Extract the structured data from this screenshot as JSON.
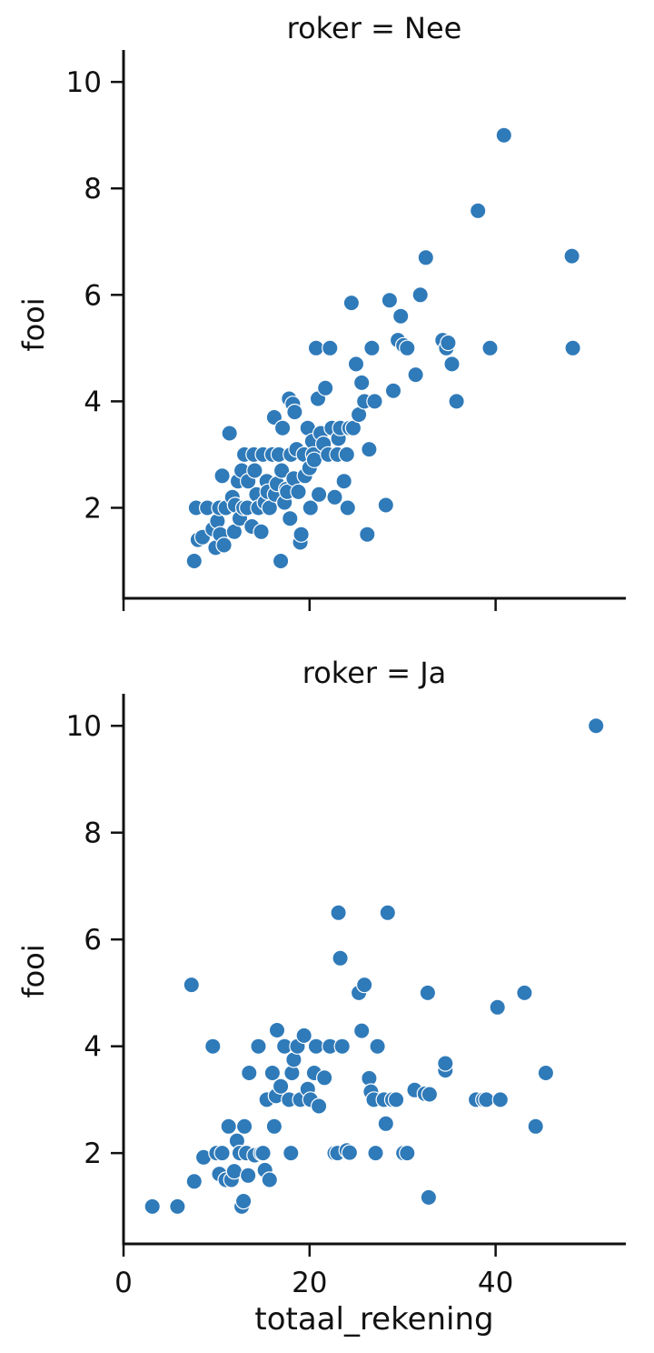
{
  "chart_data": [
    {
      "type": "scatter",
      "title": "roker = Nee",
      "xlabel": "",
      "ylabel": "fooi",
      "xlim": [
        0,
        54
      ],
      "ylim": [
        0.3,
        10.6
      ],
      "x_ticks": [
        0,
        20,
        40
      ],
      "x_tick_labels": [
        "",
        "",
        ""
      ],
      "y_ticks": [
        2,
        4,
        6,
        8,
        10
      ],
      "y_tick_labels": [
        "2",
        "4",
        "6",
        "8",
        "10"
      ],
      "grid": false,
      "color": "#2f7ab9",
      "series": [
        {
          "x": [
            7.6,
            7.8,
            8.0,
            8.5,
            9.0,
            9.6,
            9.9,
            10.1,
            10.3,
            10.6,
            10.4,
            10.8,
            11.0,
            11.4,
            11.7,
            11.9,
            12.0,
            12.3,
            12.5,
            12.7,
            12.9,
            13.0,
            13.3,
            13.4,
            13.8,
            14.0,
            14.1,
            14.3,
            14.5,
            14.8,
            15.0,
            15.2,
            15.4,
            15.5,
            15.7,
            16.0,
            16.2,
            16.3,
            16.5,
            16.7,
            16.9,
            17.0,
            17.1,
            17.3,
            17.5,
            17.6,
            17.8,
            17.9,
            18.0,
            18.2,
            18.3,
            18.4,
            18.6,
            18.8,
            19.0,
            19.1,
            19.4,
            19.5,
            19.8,
            20.0,
            20.1,
            20.3,
            20.4,
            20.5,
            20.7,
            20.9,
            21.0,
            21.2,
            21.5,
            21.7,
            22.0,
            22.2,
            22.4,
            22.7,
            23.0,
            23.1,
            23.3,
            23.7,
            24.0,
            24.1,
            24.3,
            24.5,
            24.7,
            25.0,
            25.3,
            25.6,
            25.9,
            26.2,
            26.4,
            26.7,
            27.0,
            28.2,
            28.6,
            29.0,
            29.5,
            29.8,
            30.1,
            30.5,
            31.4,
            31.9,
            32.5,
            34.3,
            34.7,
            34.9,
            35.3,
            35.8,
            38.1,
            39.4,
            40.9,
            48.2,
            48.3,
            48.3
          ],
          "y": [
            1.0,
            2.0,
            1.4,
            1.45,
            2.0,
            1.6,
            1.25,
            1.75,
            2.0,
            2.6,
            1.5,
            1.3,
            2.0,
            3.4,
            2.2,
            1.55,
            2.05,
            2.5,
            1.8,
            2.7,
            2.0,
            3.0,
            2.0,
            2.5,
            1.65,
            3.0,
            2.7,
            2.25,
            2.0,
            1.55,
            3.0,
            2.1,
            2.5,
            2.3,
            2.0,
            3.0,
            3.7,
            2.25,
            2.45,
            3.0,
            1.0,
            2.7,
            3.5,
            2.1,
            2.35,
            2.3,
            4.05,
            1.8,
            3.0,
            3.95,
            2.55,
            3.8,
            3.1,
            2.3,
            1.35,
            1.5,
            3.0,
            2.6,
            3.5,
            2.75,
            2.0,
            3.25,
            3.0,
            2.9,
            5.0,
            4.05,
            2.25,
            3.4,
            3.2,
            4.25,
            3.0,
            5.0,
            3.5,
            2.2,
            3.0,
            3.3,
            3.5,
            2.5,
            3.0,
            2.0,
            3.5,
            5.85,
            3.5,
            4.7,
            3.75,
            4.35,
            4.0,
            1.5,
            3.1,
            5.0,
            4.0,
            2.05,
            5.9,
            4.2,
            5.15,
            5.6,
            5.05,
            5.0,
            4.5,
            6.0,
            6.7,
            5.15,
            5.0,
            5.1,
            4.7,
            4.0,
            7.58,
            5.0,
            9.0,
            6.73,
            5.0,
            5.0
          ]
        }
      ]
    },
    {
      "type": "scatter",
      "title": "roker = Ja",
      "xlabel": "totaal_rekening",
      "ylabel": "fooi",
      "xlim": [
        0,
        54
      ],
      "ylim": [
        0.3,
        10.6
      ],
      "x_ticks": [
        0,
        20,
        40
      ],
      "x_tick_labels": [
        "0",
        "20",
        "40"
      ],
      "y_ticks": [
        2,
        4,
        6,
        8,
        10
      ],
      "y_tick_labels": [
        "2",
        "4",
        "6",
        "8",
        "10"
      ],
      "grid": false,
      "color": "#2f7ab9",
      "series": [
        {
          "x": [
            3.1,
            5.8,
            7.3,
            7.6,
            8.6,
            9.6,
            10.0,
            10.3,
            10.6,
            11.0,
            11.3,
            11.6,
            11.9,
            12.2,
            12.5,
            12.7,
            12.9,
            13.0,
            13.2,
            13.4,
            13.5,
            14.1,
            14.5,
            14.8,
            15.0,
            15.2,
            15.4,
            15.7,
            16.0,
            16.2,
            16.4,
            16.5,
            16.9,
            17.3,
            17.8,
            18.0,
            18.1,
            18.3,
            18.7,
            19.0,
            19.4,
            19.8,
            20.1,
            20.5,
            20.7,
            21.0,
            21.6,
            22.2,
            22.7,
            23.0,
            23.1,
            23.3,
            23.5,
            24.0,
            24.3,
            25.3,
            25.6,
            25.9,
            26.4,
            26.6,
            26.9,
            27.1,
            27.3,
            28.0,
            28.2,
            28.4,
            28.9,
            29.3,
            30.1,
            30.5,
            31.3,
            32.4,
            32.7,
            32.8,
            32.9,
            34.6,
            34.6,
            37.9,
            38.7,
            39.0,
            40.2,
            40.5,
            43.1,
            44.3,
            45.4,
            50.8
          ],
          "y": [
            1.0,
            1.0,
            5.15,
            1.47,
            1.92,
            4.0,
            2.0,
            1.61,
            2.0,
            1.5,
            2.5,
            1.5,
            1.66,
            2.23,
            2.0,
            1.0,
            1.1,
            2.5,
            2.0,
            1.58,
            3.5,
            1.96,
            4.0,
            2.0,
            2.0,
            1.68,
            3.0,
            1.5,
            3.5,
            2.5,
            3.07,
            4.3,
            3.25,
            4.0,
            3.0,
            2.0,
            3.5,
            3.75,
            4.0,
            3.0,
            4.2,
            3.2,
            3.0,
            3.5,
            4.0,
            2.88,
            3.41,
            4.0,
            2.0,
            2.0,
            6.5,
            5.65,
            4.0,
            2.05,
            2.01,
            5.0,
            4.29,
            5.15,
            3.4,
            3.15,
            3.0,
            2.0,
            4.0,
            3.0,
            2.55,
            6.5,
            3.0,
            3.0,
            2.0,
            2.0,
            3.18,
            3.11,
            5.0,
            1.17,
            3.1,
            3.55,
            3.68,
            3.0,
            3.0,
            3.0,
            4.73,
            3.0,
            5.0,
            2.5,
            3.5,
            10.0
          ]
        }
      ]
    }
  ]
}
